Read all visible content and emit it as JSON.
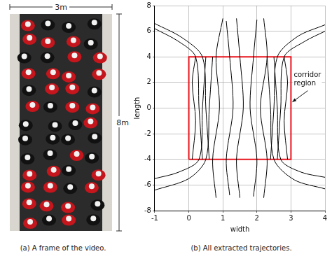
{
  "chart_data": {
    "type": "line",
    "caption": "(b) All extracted trajectories.",
    "x_label": "width",
    "y_label": "length",
    "xlim": [
      -1,
      4
    ],
    "xticks": [
      -1,
      0,
      1,
      2,
      3,
      4
    ],
    "ylim": [
      -8,
      8
    ],
    "yticks": [
      -8,
      -6,
      -4,
      -2,
      0,
      2,
      4,
      6,
      8
    ],
    "grid": true,
    "color": "#000000",
    "series": [
      {
        "x": [
          0.8,
          0.7,
          0.9,
          0.8,
          1.0
        ],
        "y": [
          -7,
          -4,
          0,
          4,
          7
        ]
      },
      {
        "x": [
          1.5,
          1.4,
          1.6,
          1.5,
          1.4
        ],
        "y": [
          -7,
          -4,
          0,
          4,
          7
        ]
      },
      {
        "x": [
          2.2,
          2.3,
          2.1,
          2.3,
          2.2
        ],
        "y": [
          -7,
          -4,
          0,
          4,
          7
        ]
      },
      {
        "x": [
          1.2,
          1.1,
          1.3,
          1.2,
          1.1
        ],
        "y": [
          -6.8,
          -4,
          0,
          4,
          6.8
        ]
      },
      {
        "x": [
          1.9,
          2.0,
          1.8,
          1.9,
          2.0
        ],
        "y": [
          -6.9,
          -4,
          0,
          4,
          6.9
        ]
      },
      {
        "x": [
          0.4,
          0.3,
          0.2,
          -0.3,
          -1
        ],
        "y": [
          -4,
          0,
          4,
          5.2,
          6.2
        ]
      },
      {
        "x": [
          0.6,
          0.5,
          0.4,
          -0.2,
          -1
        ],
        "y": [
          -4,
          0,
          4,
          5.5,
          6.6
        ]
      },
      {
        "x": [
          2.6,
          2.7,
          2.8,
          3.4,
          4
        ],
        "y": [
          -4,
          0,
          4,
          5.2,
          6.0
        ]
      },
      {
        "x": [
          2.4,
          2.5,
          2.6,
          3.2,
          4
        ],
        "y": [
          -4,
          0,
          4,
          5.6,
          6.5
        ]
      },
      {
        "x": [
          0.5,
          0.4,
          0.3,
          -0.3,
          -1
        ],
        "y": [
          4,
          0,
          -4,
          -5.0,
          -5.5
        ]
      },
      {
        "x": [
          0.7,
          0.6,
          0.5,
          0.0,
          -1
        ],
        "y": [
          4,
          0,
          -4,
          -5.5,
          -6.4
        ]
      },
      {
        "x": [
          2.5,
          2.6,
          2.7,
          3.3,
          4
        ],
        "y": [
          4,
          0,
          -4,
          -5.0,
          -5.4
        ]
      },
      {
        "x": [
          2.3,
          2.4,
          2.5,
          3.1,
          4
        ],
        "y": [
          4,
          0,
          -4,
          -5.6,
          -6.3
        ]
      },
      {
        "x": [
          0.1,
          0.2,
          0.1,
          0.2
        ],
        "y": [
          -4,
          -1,
          2,
          4
        ]
      },
      {
        "x": [
          2.9,
          2.8,
          2.9,
          2.8
        ],
        "y": [
          -4,
          -1,
          2,
          4
        ]
      }
    ],
    "region": {
      "label": "corridor region",
      "x": [
        0,
        3
      ],
      "y": [
        -4,
        4
      ],
      "color": "#e8141c"
    }
  },
  "photo": {
    "caption": "(a) A frame of the video.",
    "width_label": "3m",
    "length_label": "8m"
  }
}
